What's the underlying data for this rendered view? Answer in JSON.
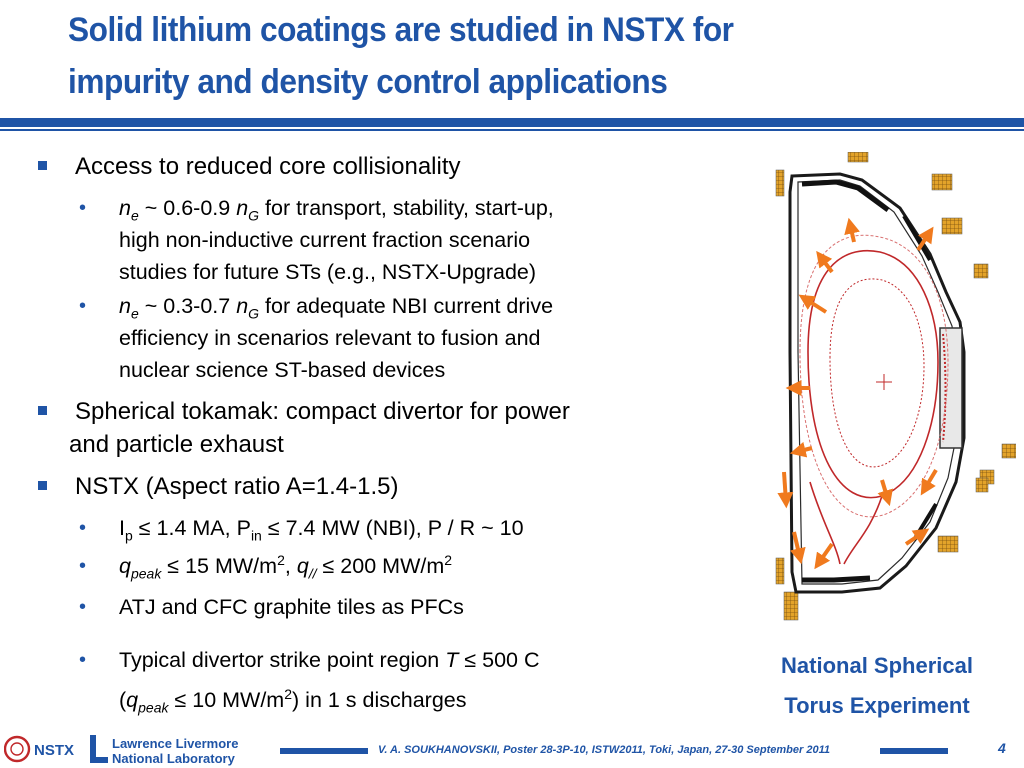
{
  "slide": {
    "title_line1": "Solid lithium coatings are studied in NSTX for",
    "title_line2": "impurity and density control applications"
  },
  "bullets": {
    "b1": "Access to reduced core collisionality",
    "b1_sub1": {
      "var1": "n",
      "sub1": "e",
      "mid": " ~ 0.6-0.9 ",
      "var2": "n",
      "sub2": "G",
      "rest": " for transport, stability, start-up,",
      "line2": "high non-inductive current fraction scenario",
      "line3": "studies for future STs (e.g., NSTX-Upgrade)"
    },
    "b1_sub2": {
      "var1": "n",
      "sub1": "e",
      "mid": " ~ 0.3-0.7 ",
      "var2": "n",
      "sub2": "G",
      "rest": " for adequate NBI current drive",
      "line2": "efficiency in scenarios relevant to fusion and",
      "line3": "nuclear science ST-based devices"
    },
    "b2_line1": " Spherical tokamak: compact divertor for power",
    "b2_line2": "and particle exhaust",
    "b3": " NSTX (Aspect ratio A=1.4-1.5)",
    "b3_sub1": {
      "p1": "I",
      "s1": "p",
      "p2": " ≤ 1.4 MA, P",
      "s2": "in",
      "p3": " ≤ 7.4 MW (NBI), P / R ~ 10"
    },
    "b3_sub2": {
      "v1": "q",
      "s1": "peak",
      "p1": " ≤ 15 MW/m",
      "sup1": "2",
      "p2": ", ",
      "v2": "q",
      "s2": "//",
      "p3": " ≤ 200 MW/m",
      "sup2": "2"
    },
    "b3_sub3": "ATJ and CFC graphite tiles as PFCs",
    "b3_sub4": {
      "line1_a": "Typical divertor strike point region ",
      "line1_var": "T",
      "line1_b": " ≤ 500 C",
      "line2_a": "(",
      "line2_var": "q",
      "line2_sub": "peak",
      "line2_b": " ≤ 10 MW/m",
      "line2_sup": "2",
      "line2_c": ") in 1 s discharges"
    }
  },
  "figure": {
    "caption_line1": "National Spherical",
    "caption_line2": "Torus Experiment"
  },
  "footer": {
    "citation": "V. A. SOUKHANOVSKII, Poster 28-3P-10, ISTW2011, Toki, Japan, 27-30 September 2011",
    "page_number": "4",
    "logo_nstx_text": "NSTX",
    "logo_llnl_line1": "Lawrence Livermore",
    "logo_llnl_line2": "National Laboratory"
  },
  "colors": {
    "accent": "#1f54a6",
    "arrow": "#f07a1e",
    "flux": "#c0282a",
    "coil": "#e0a020"
  }
}
